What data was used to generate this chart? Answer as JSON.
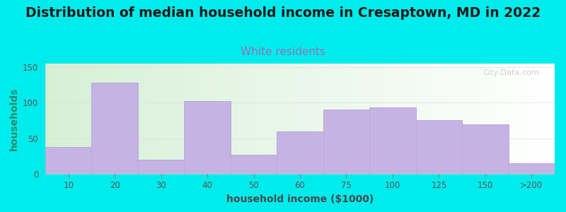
{
  "title": "Distribution of median household income in Cresaptown, MD in 2022",
  "subtitle": "White residents",
  "xlabel": "household income ($1000)",
  "ylabel": "households",
  "categories": [
    "10",
    "20",
    "30",
    "40",
    "50",
    "60",
    "75",
    "100",
    "125",
    "150",
    ">200"
  ],
  "values": [
    38,
    128,
    20,
    102,
    27,
    60,
    90,
    93,
    76,
    70,
    15
  ],
  "bar_color": "#c5b4e3",
  "bar_edgecolor": "#b8a8d8",
  "background_color": "#00ecec",
  "gradient_left": "#d6f0d6",
  "gradient_right": "#ffffff",
  "title_fontsize": 13.5,
  "title_color": "#1a1a1a",
  "subtitle_color": "#9370b8",
  "subtitle_fontsize": 11,
  "ylabel_color": "#2a8a6a",
  "xlabel_color": "#4a4a4a",
  "tick_color": "#555555",
  "ylim": [
    0,
    155
  ],
  "yticks": [
    0,
    50,
    100,
    150
  ],
  "watermark": "City-Data.com",
  "watermark_color": "#bbbbbb"
}
